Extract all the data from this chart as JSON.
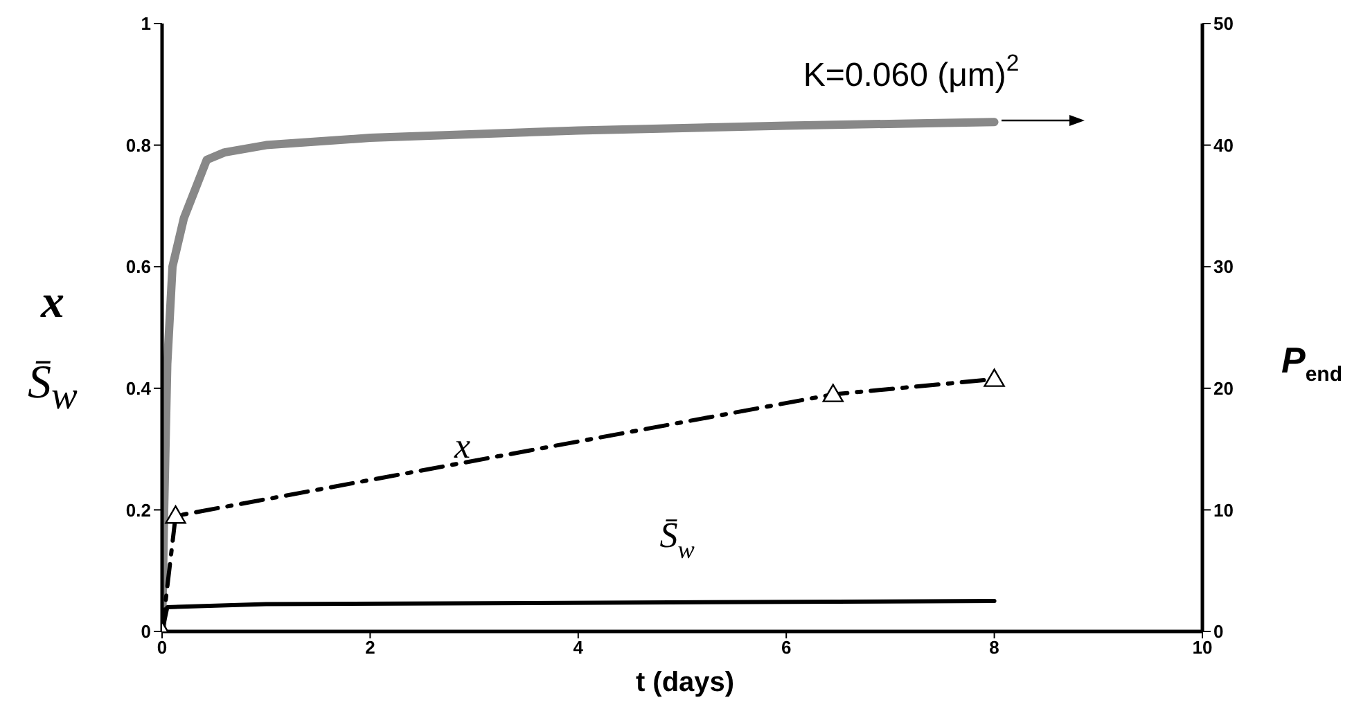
{
  "chart_data": {
    "type": "line",
    "xlabel": "t (days)",
    "ylabel": "x\nS̄$_{w}$",
    "y2label": "P$_{end}$",
    "xlim": [
      0,
      10
    ],
    "xticks": [
      0,
      2,
      4,
      6,
      8,
      10
    ],
    "ylim": [
      0,
      1
    ],
    "yticks": [
      0,
      0.2,
      0.4,
      0.6,
      0.8,
      1
    ],
    "y2lim": [
      0,
      50
    ],
    "y2ticks": [
      0,
      10,
      20,
      30,
      40,
      50
    ],
    "grid": false,
    "series": [
      {
        "name": "K=0.060 (μm)$^{2}$",
        "color": "#888888",
        "axis": "y2",
        "marker": "none",
        "line_style": "solid",
        "x": [
          0,
          0.02,
          0.05,
          0.1,
          0.21,
          0.43,
          0.6,
          1,
          2,
          4,
          6,
          8
        ],
        "values": [
          0,
          10,
          22,
          30,
          34,
          38.8,
          39.4,
          40,
          40.6,
          41.2,
          41.6,
          41.9
        ]
      },
      {
        "name": "x",
        "color": "#000000",
        "marker": "triangle",
        "line_style": "dashed",
        "x": [
          0,
          0.13,
          6.45,
          8
        ],
        "values": [
          0,
          0.19,
          0.39,
          0.415
        ]
      },
      {
        "name": "S̄$_{w}$",
        "color": "#000000",
        "marker": "none",
        "line_style": "solid",
        "x": [
          0,
          0.05,
          1,
          8
        ],
        "values": [
          0,
          0.04,
          0.045,
          0.05
        ]
      }
    ]
  }
}
